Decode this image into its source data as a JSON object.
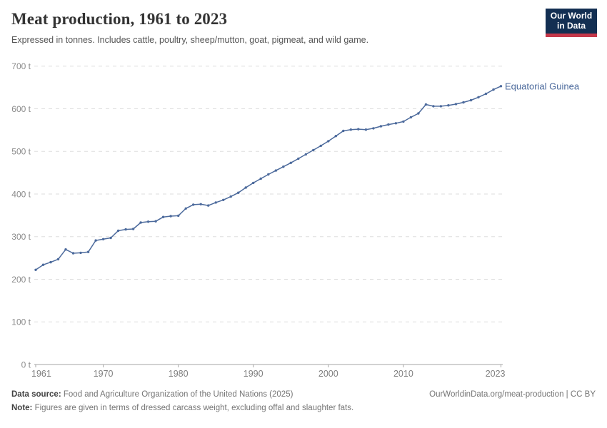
{
  "header": {
    "title": "Meat production, 1961 to 2023",
    "subtitle": "Expressed in tonnes. Includes cattle, poultry, sheep/mutton, goat, pigmeat, and wild game.",
    "logo": {
      "line1": "Our World",
      "line2": "in Data",
      "bg_color": "#132F52",
      "bar_color": "#C5384A"
    }
  },
  "chart_data": {
    "type": "line",
    "title": "Meat production, 1961 to 2023",
    "xlabel": "",
    "ylabel": "",
    "xlim": [
      1961,
      2023
    ],
    "ylim": [
      0,
      700
    ],
    "x_ticks": [
      1961,
      1970,
      1980,
      1990,
      2000,
      2010,
      2023
    ],
    "y_ticks": [
      0,
      100,
      200,
      300,
      400,
      500,
      600,
      700
    ],
    "y_tick_suffix": " t",
    "grid": "horizontal-dashed",
    "legend": "end-of-line-label",
    "colors": {
      "grid": "#DDDDDD",
      "axis": "#A6A6A6",
      "tick_label": "#8B8B8B"
    },
    "series": [
      {
        "name": "Equatorial Guinea",
        "color": "#4C6A9C",
        "x": [
          1961,
          1962,
          1963,
          1964,
          1965,
          1966,
          1967,
          1968,
          1969,
          1970,
          1971,
          1972,
          1973,
          1974,
          1975,
          1976,
          1977,
          1978,
          1979,
          1980,
          1981,
          1982,
          1983,
          1984,
          1985,
          1986,
          1987,
          1988,
          1989,
          1990,
          1991,
          1992,
          1993,
          1994,
          1995,
          1996,
          1997,
          1998,
          1999,
          2000,
          2001,
          2002,
          2003,
          2004,
          2005,
          2006,
          2007,
          2008,
          2009,
          2010,
          2011,
          2012,
          2013,
          2014,
          2015,
          2016,
          2017,
          2018,
          2019,
          2020,
          2021,
          2022,
          2023
        ],
        "values": [
          222,
          234,
          240,
          247,
          270,
          261,
          262,
          264,
          291,
          294,
          297,
          314,
          317,
          318,
          333,
          335,
          336,
          346,
          348,
          349,
          366,
          375,
          376,
          373,
          380,
          386,
          394,
          403,
          415,
          426,
          436,
          446,
          455,
          464,
          473,
          483,
          493,
          503,
          513,
          524,
          536,
          548,
          551,
          552,
          551,
          554,
          559,
          563,
          566,
          570,
          580,
          589,
          610,
          606,
          606,
          608,
          611,
          615,
          620,
          627,
          635,
          645,
          653
        ]
      }
    ]
  },
  "footer": {
    "source_label": "Data source:",
    "source_text": "Food and Agriculture Organization of the United Nations (2025)",
    "rights": "OurWorldinData.org/meat-production | CC BY",
    "note_label": "Note:",
    "note_text": "Figures are given in terms of dressed carcass weight, excluding offal and slaughter fats."
  }
}
